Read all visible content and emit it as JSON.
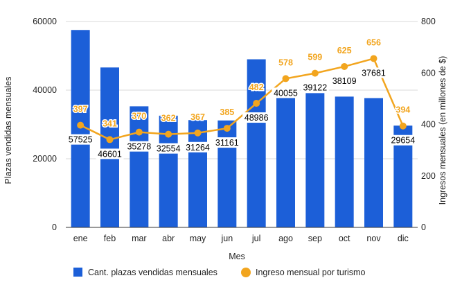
{
  "chart_data": {
    "type": "bar+line",
    "categories": [
      "ene",
      "feb",
      "mar",
      "abr",
      "may",
      "jun",
      "jul",
      "ago",
      "sep",
      "oct",
      "nov",
      "dic"
    ],
    "xlabel": "Mes",
    "ylabel_left": "Plazas vendidas mensuales",
    "ylabel_right": "Ingresos mensuales  (en millones de $)",
    "ylim_left": [
      0,
      60000
    ],
    "ylim_right": [
      0,
      800
    ],
    "yticks_left": [
      "0",
      "20000",
      "40000",
      "60000"
    ],
    "yticks_right": [
      "0",
      "200",
      "400",
      "600",
      "800"
    ],
    "series": [
      {
        "name": "Cant. plazas vendidas mensuales",
        "type": "bar",
        "axis": "left",
        "color": "#1c5fd8",
        "values": [
          57525,
          46601,
          35278,
          32554,
          31264,
          31161,
          48986,
          40055,
          39122,
          38109,
          37681,
          29654
        ]
      },
      {
        "name": "Ingreso mensual por turismo",
        "type": "line",
        "axis": "right",
        "color": "#f2a51e",
        "values": [
          397,
          341,
          370,
          362,
          367,
          385,
          482,
          578,
          599,
          625,
          656,
          394
        ]
      }
    ],
    "legend_position": "bottom",
    "grid": true
  }
}
